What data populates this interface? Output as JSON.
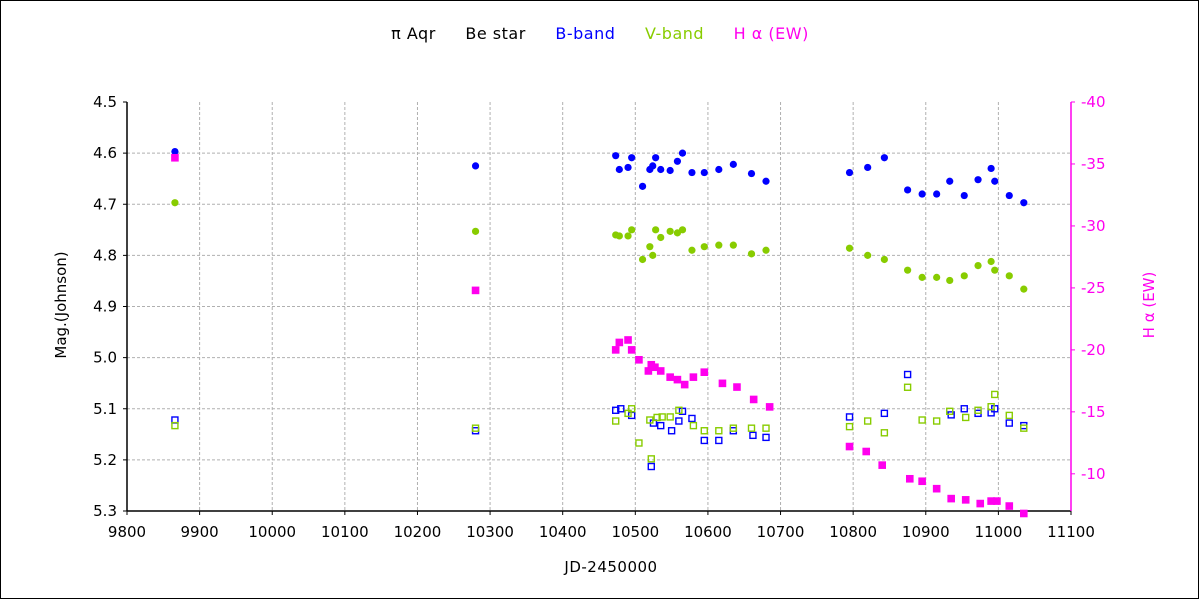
{
  "legend": {
    "star": "π  Aqr",
    "type": "Be star",
    "b_band": "B-band",
    "v_band": "V-band",
    "halpha": "H α (EW)"
  },
  "colors": {
    "b_band": "#0000ff",
    "v_band": "#88cc00",
    "halpha": "#ff00ee",
    "grid": "#b0b0b0",
    "axis": "#000000"
  },
  "chart_data": {
    "type": "scatter",
    "xlabel": "JD-2450000",
    "ylabel_left": "Mag.(Johnson)",
    "ylabel_right": "H α (EW)",
    "xlim": [
      9800,
      11100
    ],
    "ylim_left": [
      5.3,
      4.5
    ],
    "ylim_right": [
      -7,
      -40
    ],
    "x_ticks": [
      9800,
      9900,
      10000,
      10100,
      10200,
      10300,
      10400,
      10500,
      10600,
      10700,
      10800,
      10900,
      11000,
      11100
    ],
    "y_ticks_left": [
      "4.5",
      "4.6",
      "4.7",
      "4.8",
      "4.9",
      "5.0",
      "5.1",
      "5.2",
      "5.3"
    ],
    "y_ticks_right": [
      "-40",
      "-35",
      "-30",
      "-25",
      "-20",
      "-15",
      "-10"
    ],
    "grid": true,
    "legend_position": "top-center",
    "series": [
      {
        "name": "B-band",
        "axis": "left",
        "marker": "filled-circle",
        "points": [
          [
            9866,
            4.597
          ],
          [
            10280,
            4.625
          ],
          [
            10473,
            4.605
          ],
          [
            10478,
            4.632
          ],
          [
            10490,
            4.628
          ],
          [
            10495,
            4.609
          ],
          [
            10510,
            4.665
          ],
          [
            10520,
            4.632
          ],
          [
            10524,
            4.625
          ],
          [
            10528,
            4.609
          ],
          [
            10535,
            4.632
          ],
          [
            10548,
            4.634
          ],
          [
            10558,
            4.616
          ],
          [
            10565,
            4.6
          ],
          [
            10578,
            4.638
          ],
          [
            10595,
            4.638
          ],
          [
            10615,
            4.632
          ],
          [
            10635,
            4.622
          ],
          [
            10660,
            4.64
          ],
          [
            10680,
            4.655
          ],
          [
            10795,
            4.638
          ],
          [
            10820,
            4.628
          ],
          [
            10843,
            4.609
          ],
          [
            10875,
            4.672
          ],
          [
            10895,
            4.68
          ],
          [
            10915,
            4.68
          ],
          [
            10933,
            4.655
          ],
          [
            10953,
            4.683
          ],
          [
            10972,
            4.652
          ],
          [
            10990,
            4.63
          ],
          [
            10995,
            4.655
          ],
          [
            11015,
            4.683
          ],
          [
            11035,
            4.697
          ]
        ]
      },
      {
        "name": "V-band",
        "axis": "left",
        "marker": "filled-circle",
        "points": [
          [
            9866,
            4.697
          ],
          [
            10280,
            4.753
          ],
          [
            10473,
            4.76
          ],
          [
            10478,
            4.762
          ],
          [
            10490,
            4.762
          ],
          [
            10495,
            4.75
          ],
          [
            10510,
            4.808
          ],
          [
            10520,
            4.783
          ],
          [
            10524,
            4.8
          ],
          [
            10528,
            4.75
          ],
          [
            10535,
            4.765
          ],
          [
            10548,
            4.753
          ],
          [
            10558,
            4.756
          ],
          [
            10565,
            4.75
          ],
          [
            10578,
            4.79
          ],
          [
            10595,
            4.783
          ],
          [
            10615,
            4.78
          ],
          [
            10635,
            4.78
          ],
          [
            10660,
            4.797
          ],
          [
            10680,
            4.79
          ],
          [
            10795,
            4.786
          ],
          [
            10820,
            4.8
          ],
          [
            10843,
            4.808
          ],
          [
            10875,
            4.829
          ],
          [
            10895,
            4.843
          ],
          [
            10915,
            4.843
          ],
          [
            10933,
            4.849
          ],
          [
            10953,
            4.84
          ],
          [
            10972,
            4.82
          ],
          [
            10990,
            4.812
          ],
          [
            10995,
            4.829
          ],
          [
            11015,
            4.84
          ],
          [
            11035,
            4.866
          ]
        ]
      },
      {
        "name": "H α (EW)",
        "axis": "right",
        "marker": "filled-square",
        "points": [
          [
            9866,
            -35.5
          ],
          [
            10280,
            -24.8
          ],
          [
            10473,
            -20.0
          ],
          [
            10478,
            -20.6
          ],
          [
            10490,
            -20.8
          ],
          [
            10495,
            -20.0
          ],
          [
            10505,
            -19.2
          ],
          [
            10518,
            -18.3
          ],
          [
            10522,
            -18.8
          ],
          [
            10527,
            -18.6
          ],
          [
            10535,
            -18.3
          ],
          [
            10548,
            -17.8
          ],
          [
            10558,
            -17.6
          ],
          [
            10568,
            -17.2
          ],
          [
            10580,
            -17.8
          ],
          [
            10595,
            -18.2
          ],
          [
            10620,
            -17.3
          ],
          [
            10640,
            -17.0
          ],
          [
            10663,
            -16.0
          ],
          [
            10685,
            -15.4
          ],
          [
            10795,
            -12.2
          ],
          [
            10818,
            -11.8
          ],
          [
            10840,
            -10.7
          ],
          [
            10878,
            -9.6
          ],
          [
            10895,
            -9.4
          ],
          [
            10915,
            -8.8
          ],
          [
            10935,
            -8.0
          ],
          [
            10955,
            -7.9
          ],
          [
            10975,
            -7.6
          ],
          [
            10990,
            -7.8
          ],
          [
            10998,
            -7.8
          ],
          [
            11015,
            -7.4
          ],
          [
            11035,
            -6.8
          ]
        ]
      },
      {
        "name": "B-band (H α epoch)",
        "axis": "left",
        "marker": "open-square",
        "color_key": "b_band",
        "points": [
          [
            9866,
            5.122
          ],
          [
            10280,
            5.143
          ],
          [
            10473,
            5.103
          ],
          [
            10480,
            5.1
          ],
          [
            10495,
            5.113
          ],
          [
            10522,
            5.213
          ],
          [
            10525,
            5.128
          ],
          [
            10535,
            5.133
          ],
          [
            10550,
            5.143
          ],
          [
            10560,
            5.124
          ],
          [
            10565,
            5.105
          ],
          [
            10578,
            5.119
          ],
          [
            10595,
            5.162
          ],
          [
            10615,
            5.162
          ],
          [
            10635,
            5.143
          ],
          [
            10662,
            5.152
          ],
          [
            10680,
            5.156
          ],
          [
            10795,
            5.116
          ],
          [
            10843,
            5.109
          ],
          [
            10875,
            5.033
          ],
          [
            10935,
            5.112
          ],
          [
            10953,
            5.1
          ],
          [
            10972,
            5.109
          ],
          [
            10990,
            5.108
          ],
          [
            10995,
            5.1
          ],
          [
            11015,
            5.128
          ],
          [
            11035,
            5.133
          ]
        ]
      },
      {
        "name": "V-band (H α epoch)",
        "axis": "left",
        "marker": "open-square",
        "color_key": "v_band",
        "points": [
          [
            9866,
            5.133
          ],
          [
            10280,
            5.138
          ],
          [
            10473,
            5.124
          ],
          [
            10490,
            5.109
          ],
          [
            10495,
            5.1
          ],
          [
            10505,
            5.167
          ],
          [
            10520,
            5.122
          ],
          [
            10522,
            5.198
          ],
          [
            10530,
            5.117
          ],
          [
            10537,
            5.116
          ],
          [
            10548,
            5.116
          ],
          [
            10560,
            5.103
          ],
          [
            10580,
            5.133
          ],
          [
            10595,
            5.143
          ],
          [
            10615,
            5.143
          ],
          [
            10635,
            5.138
          ],
          [
            10660,
            5.138
          ],
          [
            10680,
            5.138
          ],
          [
            10795,
            5.135
          ],
          [
            10820,
            5.124
          ],
          [
            10843,
            5.147
          ],
          [
            10875,
            5.058
          ],
          [
            10895,
            5.122
          ],
          [
            10915,
            5.124
          ],
          [
            10933,
            5.105
          ],
          [
            10955,
            5.117
          ],
          [
            10972,
            5.103
          ],
          [
            10990,
            5.096
          ],
          [
            10995,
            5.072
          ],
          [
            11015,
            5.113
          ],
          [
            11035,
            5.138
          ]
        ]
      }
    ]
  }
}
